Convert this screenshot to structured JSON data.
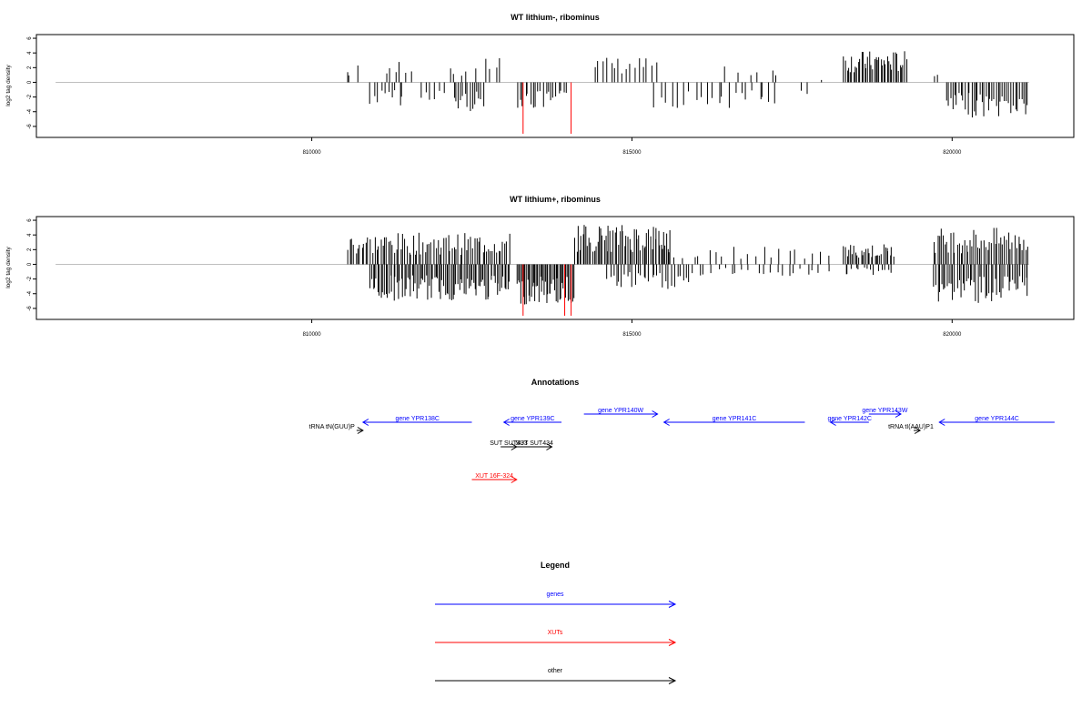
{
  "colors": {
    "gene": "#0000ff",
    "xut": "#ff0000",
    "other": "#000000",
    "zero_line": "#bebebe",
    "bar": "#000000"
  },
  "chart_data": [
    {
      "type": "bar",
      "title": "WT lithium-, ribominus",
      "xlabel": "",
      "ylabel": "log2 tag density",
      "xlim": [
        805700,
        821900
      ],
      "ylim": [
        -7.5,
        6.5
      ],
      "xticks": [
        810000,
        815000,
        820000
      ],
      "yticks": [
        6,
        4,
        2,
        0,
        -2,
        -4,
        -6
      ],
      "grid": false,
      "baseline": [
        806000,
        821200
      ],
      "segments": [
        {
          "from": 810550,
          "to": 810600,
          "sign": 1,
          "amp": 2.0,
          "n": 2
        },
        {
          "from": 810700,
          "to": 810750,
          "sign": 1,
          "amp": 3.5,
          "n": 1
        },
        {
          "from": 810900,
          "to": 811450,
          "sign": -1,
          "amp": 3.2,
          "n": 10
        },
        {
          "from": 811100,
          "to": 811600,
          "sign": 1,
          "amp": 2.8,
          "n": 6
        },
        {
          "from": 811700,
          "to": 812100,
          "sign": -1,
          "amp": 2.5,
          "n": 6
        },
        {
          "from": 812100,
          "to": 812600,
          "sign": 1,
          "amp": 2.5,
          "n": 5
        },
        {
          "from": 812200,
          "to": 812700,
          "sign": -1,
          "amp": 4.0,
          "n": 14
        },
        {
          "from": 812700,
          "to": 813000,
          "sign": 1,
          "amp": 3.3,
          "n": 4
        },
        {
          "from": 813200,
          "to": 814000,
          "sign": -1,
          "amp": 3.8,
          "n": 20
        },
        {
          "from": 814400,
          "to": 815400,
          "sign": 1,
          "amp": 3.5,
          "n": 16
        },
        {
          "from": 815300,
          "to": 817300,
          "sign": -1,
          "amp": 3.5,
          "n": 22
        },
        {
          "from": 816400,
          "to": 817400,
          "sign": 1,
          "amp": 2.3,
          "n": 6
        },
        {
          "from": 817600,
          "to": 817800,
          "sign": -1,
          "amp": 2.4,
          "n": 2
        },
        {
          "from": 817900,
          "to": 818100,
          "sign": 1,
          "amp": 1.0,
          "n": 1
        },
        {
          "from": 818300,
          "to": 819300,
          "sign": 1,
          "amp": 4.3,
          "n": 40
        },
        {
          "from": 819700,
          "to": 819800,
          "sign": 1,
          "amp": 2.5,
          "n": 2
        },
        {
          "from": 819900,
          "to": 821200,
          "sign": -1,
          "amp": 4.8,
          "n": 40
        }
      ],
      "highlight_bars": [
        {
          "x": 813300,
          "y": -7.0
        },
        {
          "x": 814050,
          "y": -7.0
        }
      ]
    },
    {
      "type": "bar",
      "title": "WT lithium+, ribominus",
      "xlabel": "",
      "ylabel": "log2 tag density",
      "xlim": [
        805700,
        821900
      ],
      "ylim": [
        -7.5,
        6.5
      ],
      "xticks": [
        810000,
        815000,
        820000
      ],
      "yticks": [
        6,
        4,
        2,
        0,
        -2,
        -4,
        -6
      ],
      "grid": false,
      "baseline": [
        806000,
        821200
      ],
      "segments": [
        {
          "from": 810550,
          "to": 813100,
          "sign": 1,
          "amp": 4.3,
          "n": 80
        },
        {
          "from": 810900,
          "to": 813100,
          "sign": -1,
          "amp": 5.0,
          "n": 90
        },
        {
          "from": 813200,
          "to": 814100,
          "sign": -1,
          "amp": 5.5,
          "n": 45
        },
        {
          "from": 814100,
          "to": 815600,
          "sign": 1,
          "amp": 5.5,
          "n": 60
        },
        {
          "from": 814600,
          "to": 815900,
          "sign": -1,
          "amp": 3.5,
          "n": 30
        },
        {
          "from": 815400,
          "to": 818100,
          "sign": 1,
          "amp": 2.5,
          "n": 22
        },
        {
          "from": 815900,
          "to": 818100,
          "sign": -1,
          "amp": 1.6,
          "n": 22
        },
        {
          "from": 818300,
          "to": 819100,
          "sign": 1,
          "amp": 2.8,
          "n": 30
        },
        {
          "from": 818300,
          "to": 819100,
          "sign": -1,
          "amp": 1.5,
          "n": 14
        },
        {
          "from": 819700,
          "to": 821200,
          "sign": 1,
          "amp": 5.0,
          "n": 50
        },
        {
          "from": 819700,
          "to": 821200,
          "sign": -1,
          "amp": 5.3,
          "n": 50
        }
      ],
      "highlight_bars": [
        {
          "x": 813300,
          "y": -7.0
        },
        {
          "x": 813950,
          "y": -7.0
        },
        {
          "x": 814050,
          "y": -7.0
        }
      ]
    }
  ],
  "annotations": {
    "title": "Annotations",
    "features": [
      {
        "label": "tRNA tN(GUU)P",
        "category": "other",
        "start": 810700,
        "end": 810800,
        "strand": 1,
        "row": 1
      },
      {
        "label": "gene YPR138C",
        "category": "gene",
        "start": 810800,
        "end": 812500,
        "strand": -1,
        "row": 0
      },
      {
        "label": "gene YPR139C",
        "category": "gene",
        "start": 813000,
        "end": 813900,
        "strand": -1,
        "row": 0
      },
      {
        "label": "gene YPR140W",
        "category": "gene",
        "start": 814250,
        "end": 815400,
        "strand": 1,
        "row": -1
      },
      {
        "label": "gene YPR141C",
        "category": "gene",
        "start": 815500,
        "end": 817700,
        "strand": -1,
        "row": 0
      },
      {
        "label": "gene YPR142C",
        "category": "gene",
        "start": 818100,
        "end": 818700,
        "strand": -1,
        "row": 0
      },
      {
        "label": "gene YPR143W",
        "category": "gene",
        "start": 818700,
        "end": 819200,
        "strand": 1,
        "row": -1
      },
      {
        "label": "tRNA tI(AAU)P1",
        "category": "other",
        "start": 819400,
        "end": 819500,
        "strand": 1,
        "row": 1
      },
      {
        "label": "gene YPR144C",
        "category": "gene",
        "start": 819800,
        "end": 821600,
        "strand": -1,
        "row": 0
      },
      {
        "label": "SUT SUT433",
        "category": "other",
        "start": 812950,
        "end": 813200,
        "strand": 1,
        "row": 3
      },
      {
        "label": "SUT SUT434",
        "category": "other",
        "start": 813200,
        "end": 813750,
        "strand": 1,
        "row": 3
      },
      {
        "label": "XUT 16F-324",
        "category": "xut",
        "start": 812500,
        "end": 813200,
        "strand": 1,
        "row": 7
      }
    ]
  },
  "legend": {
    "title": "Legend",
    "items": [
      {
        "label": "genes",
        "category": "gene"
      },
      {
        "label": "XUTs",
        "category": "xut"
      },
      {
        "label": "other",
        "category": "other"
      }
    ]
  }
}
